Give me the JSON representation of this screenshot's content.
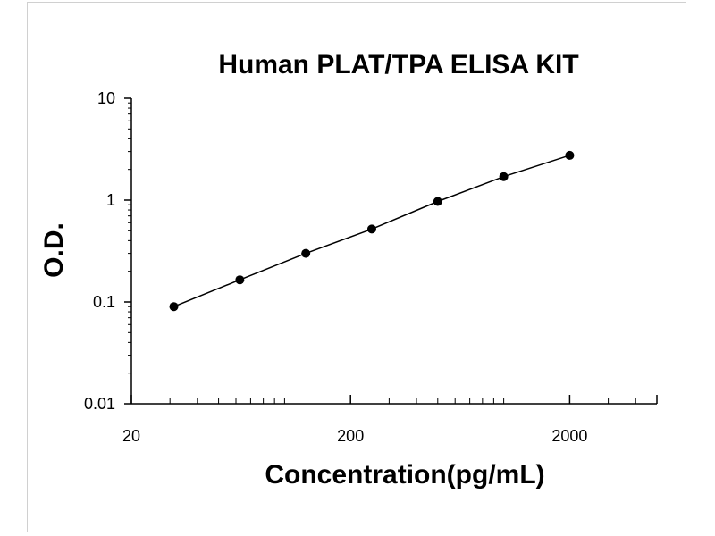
{
  "chart_data": {
    "type": "line",
    "title": "Human PLAT/TPA ELISA KIT",
    "xlabel": "Concentration(pg/mL)",
    "ylabel": "O.D.",
    "xscale": "log",
    "yscale": "log",
    "xlim": [
      20,
      5000
    ],
    "ylim": [
      0.01,
      10
    ],
    "xticks": [
      "20",
      "200",
      "2000"
    ],
    "xtick_values": [
      20,
      200,
      2000
    ],
    "yticks": [
      "0.01",
      "0.1",
      "1",
      "10"
    ],
    "ytick_values": [
      0.01,
      0.1,
      1,
      10
    ],
    "grid": false,
    "legend": "none",
    "series": [
      {
        "x": [
          31.25,
          62.5,
          125,
          250,
          500,
          1000,
          2000
        ],
        "y": [
          0.09,
          0.165,
          0.3,
          0.52,
          0.97,
          1.7,
          2.75
        ]
      }
    ],
    "colors": {
      "line": "#000000",
      "marker": "#000000",
      "axis": "#000000"
    }
  }
}
